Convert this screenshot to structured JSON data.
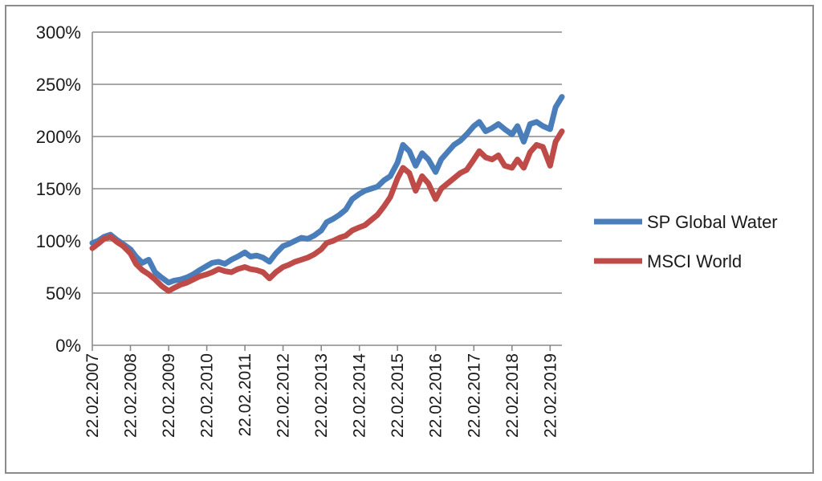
{
  "chart_data": {
    "type": "line",
    "title": "",
    "xlabel": "",
    "ylabel": "",
    "x_ticks": [
      "22.02.2007",
      "22.02.2008",
      "22.02.2009",
      "22.02.2010",
      "22.02.2011",
      "22.02.2012",
      "22.02.2013",
      "22.02.2014",
      "22.02.2015",
      "22.02.2016",
      "22.02.2017",
      "22.02.2018",
      "22.02.2019"
    ],
    "y_ticks": [
      "0%",
      "50%",
      "100%",
      "150%",
      "200%",
      "250%",
      "300%"
    ],
    "ylim": [
      0,
      300
    ],
    "xlim": [
      "2007-02-22",
      "2019-06-15"
    ],
    "grid": "horizontal",
    "legend": "right",
    "x": [
      "2007-02-22",
      "2007-04-15",
      "2007-06-15",
      "2007-08-15",
      "2007-10-15",
      "2007-12-15",
      "2008-02-22",
      "2008-04-15",
      "2008-06-15",
      "2008-08-15",
      "2008-10-15",
      "2008-12-15",
      "2009-02-22",
      "2009-04-15",
      "2009-06-15",
      "2009-08-15",
      "2009-10-15",
      "2009-12-15",
      "2010-02-22",
      "2010-04-15",
      "2010-06-15",
      "2010-08-15",
      "2010-10-15",
      "2010-12-15",
      "2011-02-22",
      "2011-04-15",
      "2011-06-15",
      "2011-08-15",
      "2011-10-15",
      "2011-12-15",
      "2012-02-22",
      "2012-04-15",
      "2012-06-15",
      "2012-08-15",
      "2012-10-15",
      "2012-12-15",
      "2013-02-22",
      "2013-04-15",
      "2013-06-15",
      "2013-08-15",
      "2013-10-15",
      "2013-12-15",
      "2014-02-22",
      "2014-04-15",
      "2014-06-15",
      "2014-08-15",
      "2014-10-15",
      "2014-12-15",
      "2015-02-22",
      "2015-04-15",
      "2015-06-15",
      "2015-08-15",
      "2015-10-15",
      "2015-12-15",
      "2016-02-22",
      "2016-04-15",
      "2016-06-15",
      "2016-08-15",
      "2016-10-15",
      "2016-12-15",
      "2017-02-22",
      "2017-04-15",
      "2017-06-15",
      "2017-08-15",
      "2017-10-15",
      "2017-12-15",
      "2018-02-22",
      "2018-04-15",
      "2018-06-15",
      "2018-08-15",
      "2018-10-15",
      "2018-12-15",
      "2019-02-22",
      "2019-04-15",
      "2019-06-15"
    ],
    "series": [
      {
        "name": "SP Global Water",
        "color": "#4a7ebb",
        "values": [
          98,
          100,
          104,
          106,
          101,
          97,
          92,
          85,
          79,
          82,
          70,
          65,
          60,
          62,
          63,
          65,
          68,
          72,
          76,
          79,
          80,
          78,
          82,
          85,
          89,
          85,
          86,
          84,
          80,
          88,
          95,
          97,
          100,
          103,
          102,
          105,
          110,
          118,
          121,
          125,
          130,
          140,
          145,
          148,
          150,
          152,
          158,
          162,
          175,
          192,
          186,
          172,
          184,
          178,
          166,
          178,
          185,
          192,
          196,
          202,
          210,
          214,
          205,
          208,
          212,
          207,
          202,
          210,
          195,
          212,
          214,
          210,
          207,
          228,
          238
        ]
      },
      {
        "name": "MSCI World",
        "color": "#be4b48",
        "values": [
          93,
          97,
          102,
          104,
          99,
          95,
          88,
          78,
          72,
          68,
          63,
          57,
          52,
          55,
          58,
          60,
          63,
          66,
          68,
          70,
          73,
          71,
          70,
          73,
          75,
          73,
          72,
          70,
          64,
          70,
          75,
          77,
          80,
          82,
          84,
          87,
          92,
          98,
          100,
          103,
          105,
          110,
          113,
          115,
          120,
          125,
          133,
          142,
          160,
          170,
          165,
          148,
          162,
          155,
          140,
          150,
          155,
          160,
          165,
          168,
          178,
          186,
          180,
          178,
          182,
          172,
          170,
          178,
          170,
          185,
          192,
          190,
          172,
          195,
          205
        ]
      }
    ]
  }
}
